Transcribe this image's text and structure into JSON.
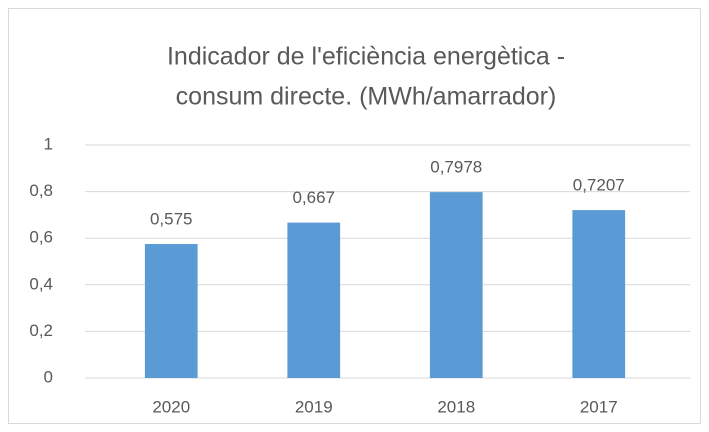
{
  "chart_data": {
    "type": "bar",
    "title": [
      "Indicador de l'eficiència energètica  -",
      " consum directe. (MWh/amarrador)"
    ],
    "categories": [
      "2020",
      "2019",
      "2018",
      "2017"
    ],
    "values": [
      0.575,
      0.667,
      0.7978,
      0.7207
    ],
    "value_labels": [
      "0,575",
      "0,667",
      "0,7978",
      "0,7207"
    ],
    "color": "#5b9bd5",
    "ylim": [
      0,
      1
    ],
    "yticks": [
      0,
      {
        "value": 0.2,
        "label": "0,2"
      },
      {
        "value": 0.4,
        "label": "0,4"
      },
      {
        "value": 0.6,
        "label": "0,6"
      },
      {
        "value": 0.8,
        "label": "0,8"
      },
      1
    ],
    "grid": true
  }
}
